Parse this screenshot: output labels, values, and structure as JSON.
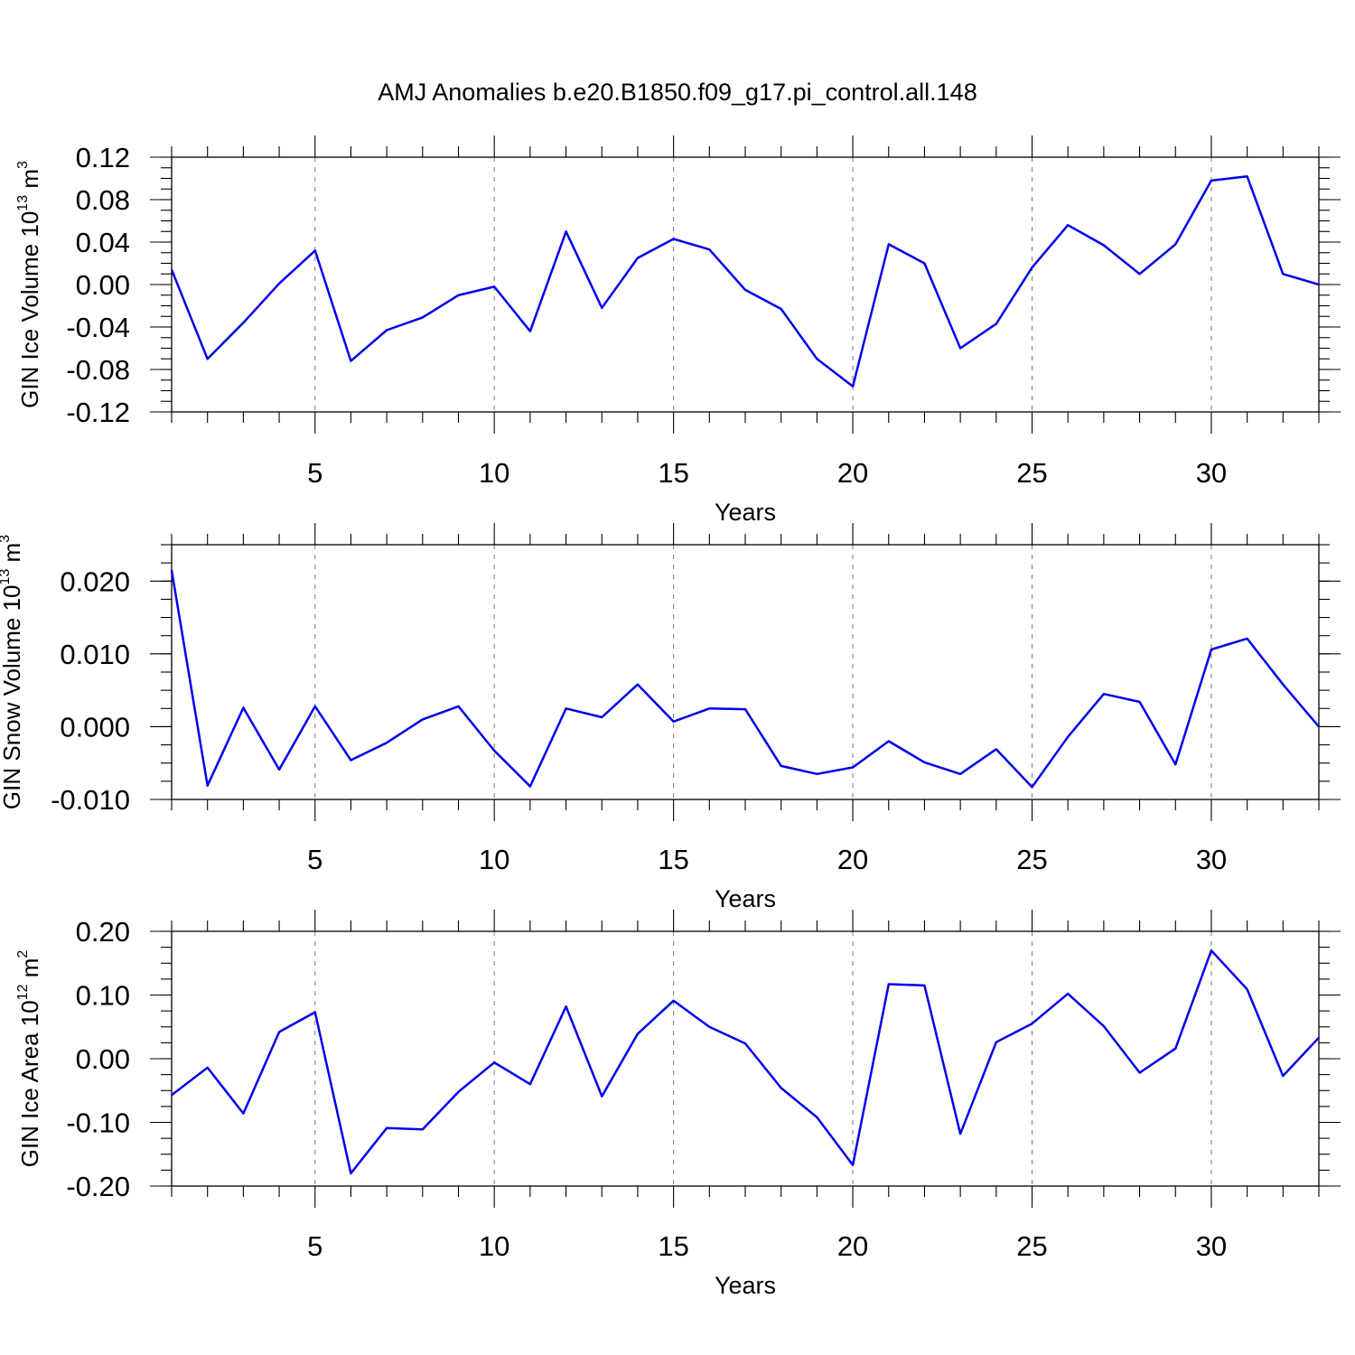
{
  "title": "AMJ Anomalies b.e20.B1850.f09_g17.pi_control.all.148",
  "colors": {
    "series": "#0000ee",
    "grid": "#7a7a7a"
  },
  "chart_data": [
    {
      "type": "line",
      "ylabel": {
        "text": "GIN Ice Volume 10",
        "exp": "13",
        "unit": " m",
        "unit_exp": "3"
      },
      "xlabel": "Years",
      "xlim": [
        1,
        33
      ],
      "ylim": [
        -0.12,
        0.12
      ],
      "xticks": [
        5,
        10,
        15,
        20,
        25,
        30
      ],
      "xtick_labels": [
        "5",
        "10",
        "15",
        "20",
        "25",
        "30"
      ],
      "yticks": [
        -0.12,
        -0.08,
        -0.04,
        0.0,
        0.04,
        0.08,
        0.12
      ],
      "ytick_labels": [
        "-0.12",
        "-0.08",
        "-0.04",
        "0.00",
        "0.04",
        "0.08",
        "0.12"
      ],
      "grid": "vertical dashed at major x ticks",
      "x": [
        1,
        2,
        3,
        4,
        5,
        6,
        7,
        8,
        9,
        10,
        11,
        12,
        13,
        14,
        15,
        16,
        17,
        18,
        19,
        20,
        21,
        22,
        23,
        24,
        25,
        26,
        27,
        28,
        29,
        30,
        31,
        32,
        33
      ],
      "values": [
        0.014,
        -0.07,
        -0.036,
        0.001,
        0.032,
        -0.072,
        -0.043,
        -0.031,
        -0.01,
        -0.002,
        -0.044,
        0.05,
        -0.022,
        0.025,
        0.043,
        0.033,
        -0.005,
        -0.023,
        -0.07,
        -0.096,
        0.038,
        0.02,
        -0.06,
        -0.037,
        0.016,
        0.056,
        0.037,
        0.01,
        0.038,
        0.098,
        0.102,
        0.01,
        0.0
      ]
    },
    {
      "type": "line",
      "ylabel": {
        "text": "GIN Snow Volume 10",
        "exp": "13",
        "unit": " m",
        "unit_exp": "3"
      },
      "xlabel": "Years",
      "xlim": [
        1,
        33
      ],
      "ylim": [
        -0.01,
        0.025
      ],
      "xticks": [
        5,
        10,
        15,
        20,
        25,
        30
      ],
      "xtick_labels": [
        "5",
        "10",
        "15",
        "20",
        "25",
        "30"
      ],
      "yticks": [
        -0.01,
        0.0,
        0.01,
        0.02
      ],
      "ytick_labels": [
        "-0.010",
        "0.000",
        "0.010",
        "0.020"
      ],
      "grid": "vertical dashed at major x ticks",
      "x": [
        1,
        2,
        3,
        4,
        5,
        6,
        7,
        8,
        9,
        10,
        11,
        12,
        13,
        14,
        15,
        16,
        17,
        18,
        19,
        20,
        21,
        22,
        23,
        24,
        25,
        26,
        27,
        28,
        29,
        30,
        31,
        32,
        33
      ],
      "values": [
        0.0215,
        -0.0081,
        0.0026,
        -0.0059,
        0.0028,
        -0.0046,
        -0.0022,
        0.001,
        0.0028,
        -0.0033,
        -0.0082,
        0.0025,
        0.0013,
        0.0058,
        0.0007,
        0.0025,
        0.0024,
        -0.0054,
        -0.0065,
        -0.0056,
        -0.002,
        -0.0049,
        -0.0065,
        -0.0031,
        -0.0083,
        -0.0014,
        0.0045,
        0.0034,
        -0.0052,
        0.0106,
        0.0121,
        0.0058,
        0.0
      ]
    },
    {
      "type": "line",
      "ylabel": {
        "text": "GIN Ice Area 10",
        "exp": "12",
        "unit": " m",
        "unit_exp": "2"
      },
      "xlabel": "Years",
      "xlim": [
        1,
        33
      ],
      "ylim": [
        -0.2,
        0.2
      ],
      "xticks": [
        5,
        10,
        15,
        20,
        25,
        30
      ],
      "xtick_labels": [
        "5",
        "10",
        "15",
        "20",
        "25",
        "30"
      ],
      "yticks": [
        -0.2,
        -0.1,
        0.0,
        0.1,
        0.2
      ],
      "ytick_labels": [
        "-0.20",
        "-0.10",
        "0.00",
        "0.10",
        "0.20"
      ],
      "grid": "vertical dashed at major x ticks",
      "x": [
        1,
        2,
        3,
        4,
        5,
        6,
        7,
        8,
        9,
        10,
        11,
        12,
        13,
        14,
        15,
        16,
        17,
        18,
        19,
        20,
        21,
        22,
        23,
        24,
        25,
        26,
        27,
        28,
        29,
        30,
        31,
        32,
        33
      ],
      "values": [
        -0.057,
        -0.014,
        -0.086,
        0.042,
        0.073,
        -0.18,
        -0.109,
        -0.111,
        -0.052,
        -0.006,
        -0.04,
        0.082,
        -0.059,
        0.039,
        0.091,
        0.05,
        0.024,
        -0.046,
        -0.092,
        -0.167,
        0.117,
        0.115,
        -0.118,
        0.026,
        0.055,
        0.102,
        0.051,
        -0.022,
        0.016,
        0.17,
        0.109,
        -0.027,
        0.033
      ]
    }
  ]
}
